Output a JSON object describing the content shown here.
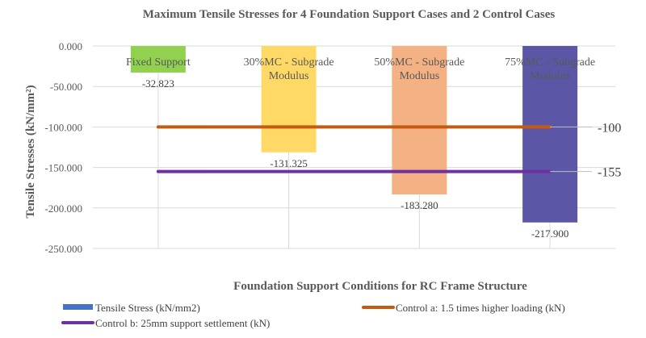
{
  "chart_data": {
    "type": "bar",
    "title": "Maximum Tensile Stresses for 4 Foundation Support Cases and 2 Control Cases",
    "xlabel": "Foundation Support Conditions for RC Frame Structure",
    "ylabel": "Tensile Stresses (kN/mm²)",
    "ylim": [
      -250,
      0
    ],
    "yticks": [
      "0.000",
      "-50.000",
      "-100.000",
      "-150.000",
      "-200.000",
      "-250.000"
    ],
    "ytick_values": [
      0,
      -50,
      -100,
      -150,
      -200,
      -250
    ],
    "grid": true,
    "legend_position": "bottom",
    "categories": [
      [
        "Fixed Support"
      ],
      [
        "30%MC - Subgrade",
        "Modulus"
      ],
      [
        "50%MC - Subgrade",
        "Modulus"
      ],
      [
        "75%MC - Subgrade",
        "Modulus"
      ]
    ],
    "series": [
      {
        "name": "Tensile Stress (kN/mm2)",
        "kind": "bar",
        "legend_color": "#4472c4",
        "values": [
          -32.823,
          -131.325,
          -183.28,
          -217.9
        ],
        "labels": [
          "-32.823",
          "-131.325",
          "-183.280",
          "-217.900"
        ],
        "colors": [
          "#92d050",
          "#ffd966",
          "#f4b183",
          "#5b57a6"
        ]
      },
      {
        "name": "Control a: 1.5 times higher loading (kN)",
        "kind": "line",
        "color": "#c55a11",
        "value": -100,
        "label": "-100"
      },
      {
        "name": "Control b: 25mm support settlement (kN)",
        "kind": "line",
        "color": "#7030a0",
        "value": -155,
        "label": "-155"
      }
    ]
  }
}
